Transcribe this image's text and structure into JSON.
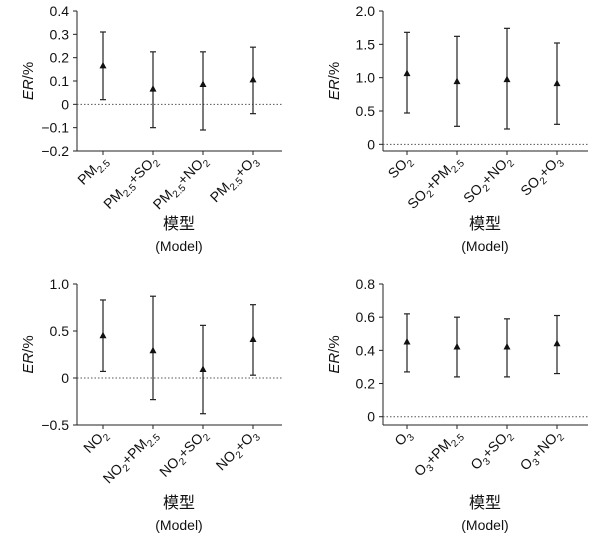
{
  "chart_data": [
    {
      "type": "errorbar",
      "ylabel_italic": "ER",
      "ylabel_suffix": "/%",
      "xlabel_cn": "模型",
      "xlabel_en": "(Model)",
      "ylim": [
        -0.2,
        0.4
      ],
      "yticks": [
        "−0.2",
        "−0.1",
        "0",
        "0.1",
        "0.2",
        "0.3",
        "0.4"
      ],
      "categories": [
        [
          {
            "t": "PM"
          },
          {
            "t": "2.5",
            "sub": true
          }
        ],
        [
          {
            "t": "PM"
          },
          {
            "t": "2.5",
            "sub": true
          },
          {
            "t": "+SO"
          },
          {
            "t": "2",
            "sub": true
          }
        ],
        [
          {
            "t": "PM"
          },
          {
            "t": "2.5",
            "sub": true
          },
          {
            "t": "+NO"
          },
          {
            "t": "2",
            "sub": true
          }
        ],
        [
          {
            "t": "PM"
          },
          {
            "t": "2.5",
            "sub": true
          },
          {
            "t": "+O"
          },
          {
            "t": "3",
            "sub": true
          }
        ]
      ],
      "estimates": [
        0.165,
        0.065,
        0.085,
        0.105
      ],
      "lower": [
        0.02,
        -0.1,
        -0.11,
        -0.04
      ],
      "upper": [
        0.31,
        0.225,
        0.225,
        0.245
      ]
    },
    {
      "type": "errorbar",
      "ylabel_italic": "ER",
      "ylabel_suffix": "/%",
      "xlabel_cn": "模型",
      "xlabel_en": "(Model)",
      "ylim": [
        -0.1,
        2.0
      ],
      "yticks": [
        "0",
        "0.5",
        "1.0",
        "1.5",
        "2.0"
      ],
      "categories": [
        [
          {
            "t": "SO"
          },
          {
            "t": "2",
            "sub": true
          }
        ],
        [
          {
            "t": "SO"
          },
          {
            "t": "2",
            "sub": true
          },
          {
            "t": "+PM"
          },
          {
            "t": "2.5",
            "sub": true
          }
        ],
        [
          {
            "t": "SO"
          },
          {
            "t": "2",
            "sub": true
          },
          {
            "t": "+NO"
          },
          {
            "t": "2",
            "sub": true
          }
        ],
        [
          {
            "t": "SO"
          },
          {
            "t": "2",
            "sub": true
          },
          {
            "t": "+O"
          },
          {
            "t": "3",
            "sub": true
          }
        ]
      ],
      "estimates": [
        1.06,
        0.94,
        0.97,
        0.91
      ],
      "lower": [
        0.47,
        0.27,
        0.23,
        0.3
      ],
      "upper": [
        1.68,
        1.62,
        1.74,
        1.52
      ]
    },
    {
      "type": "errorbar",
      "ylabel_italic": "ER",
      "ylabel_suffix": "/%",
      "xlabel_cn": "模型",
      "xlabel_en": "(Model)",
      "ylim": [
        -0.5,
        1.0
      ],
      "yticks": [
        "−0.5",
        "0",
        "0.5",
        "1.0"
      ],
      "categories": [
        [
          {
            "t": "NO"
          },
          {
            "t": "2",
            "sub": true
          }
        ],
        [
          {
            "t": "NO"
          },
          {
            "t": "2",
            "sub": true
          },
          {
            "t": "+PM"
          },
          {
            "t": "2.5",
            "sub": true
          }
        ],
        [
          {
            "t": "NO"
          },
          {
            "t": "2",
            "sub": true
          },
          {
            "t": "+SO"
          },
          {
            "t": "2",
            "sub": true
          }
        ],
        [
          {
            "t": "NO"
          },
          {
            "t": "2",
            "sub": true
          },
          {
            "t": "+O"
          },
          {
            "t": "3",
            "sub": true
          }
        ]
      ],
      "estimates": [
        0.45,
        0.29,
        0.09,
        0.41
      ],
      "lower": [
        0.07,
        -0.23,
        -0.38,
        0.03
      ],
      "upper": [
        0.83,
        0.87,
        0.56,
        0.78
      ]
    },
    {
      "type": "errorbar",
      "ylabel_italic": "ER",
      "ylabel_suffix": "/%",
      "xlabel_cn": "模型",
      "xlabel_en": "(Model)",
      "ylim": [
        -0.05,
        0.8
      ],
      "yticks": [
        "0",
        "0.2",
        "0.4",
        "0.6",
        "0.8"
      ],
      "categories": [
        [
          {
            "t": "O"
          },
          {
            "t": "3",
            "sub": true
          }
        ],
        [
          {
            "t": "O"
          },
          {
            "t": "3",
            "sub": true
          },
          {
            "t": "+PM"
          },
          {
            "t": "2.5",
            "sub": true
          }
        ],
        [
          {
            "t": "O"
          },
          {
            "t": "3",
            "sub": true
          },
          {
            "t": "+SO"
          },
          {
            "t": "2",
            "sub": true
          }
        ],
        [
          {
            "t": "O"
          },
          {
            "t": "3",
            "sub": true
          },
          {
            "t": "+NO"
          },
          {
            "t": "2",
            "sub": true
          }
        ]
      ],
      "estimates": [
        0.45,
        0.42,
        0.42,
        0.44
      ],
      "lower": [
        0.27,
        0.24,
        0.24,
        0.26
      ],
      "upper": [
        0.62,
        0.6,
        0.59,
        0.61
      ]
    }
  ]
}
